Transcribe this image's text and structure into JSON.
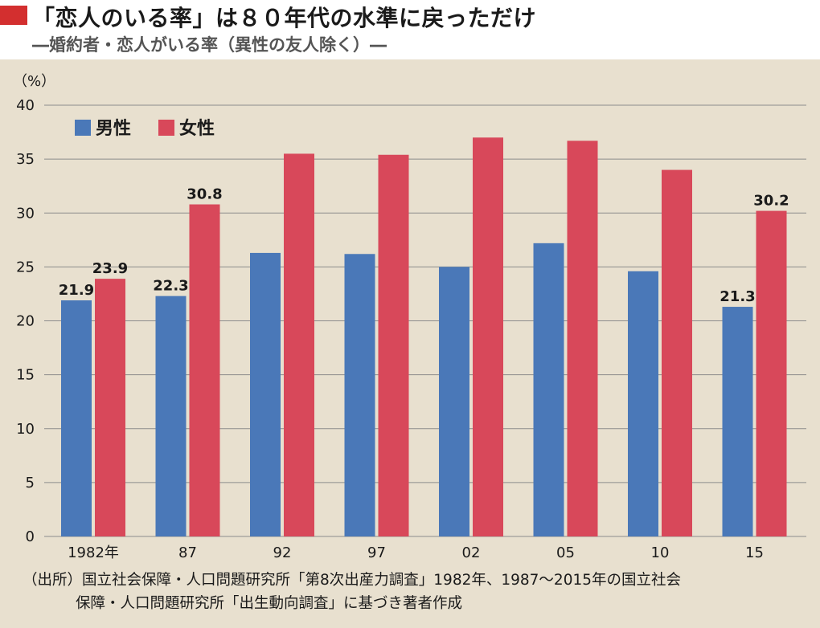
{
  "header": {
    "title": "「恋人のいる率」は８０年代の水準に戻っただけ",
    "subtitle": "―婚約者・恋人がいる率（異性の友人除く）―",
    "accent_color": "#d32f2f"
  },
  "chart_data": {
    "type": "bar",
    "title": "「恋人のいる率」は８０年代の水準に戻っただけ",
    "subtitle": "―婚約者・恋人がいる率（異性の友人除く）―",
    "unit_label": "（%）",
    "categories": [
      "1982年",
      "87",
      "92",
      "97",
      "02",
      "05",
      "10",
      "15"
    ],
    "series": [
      {
        "name": "男性",
        "color": "#4a78b8",
        "values": [
          21.9,
          22.3,
          26.3,
          26.2,
          25.0,
          27.2,
          24.6,
          21.3
        ],
        "labels": [
          "21.9",
          "22.3",
          "",
          "",
          "",
          "",
          "",
          "21.3"
        ]
      },
      {
        "name": "女性",
        "color": "#d8485a",
        "values": [
          23.9,
          30.8,
          35.5,
          35.4,
          37.0,
          36.7,
          34.0,
          30.2
        ],
        "labels": [
          "23.9",
          "30.8",
          "",
          "",
          "",
          "",
          "",
          "30.2"
        ]
      }
    ],
    "ylim": [
      0,
      40
    ],
    "yticks": [
      0,
      5,
      10,
      15,
      20,
      25,
      30,
      35,
      40
    ],
    "grid": true,
    "legend_position": "top-left"
  },
  "source": {
    "line1": "（出所）国立社会保障・人口問題研究所「第8次出産力調査」1982年、1987～2015年の国立社会",
    "line2": "保障・人口問題研究所「出生動向調査」に基づき著者作成"
  }
}
